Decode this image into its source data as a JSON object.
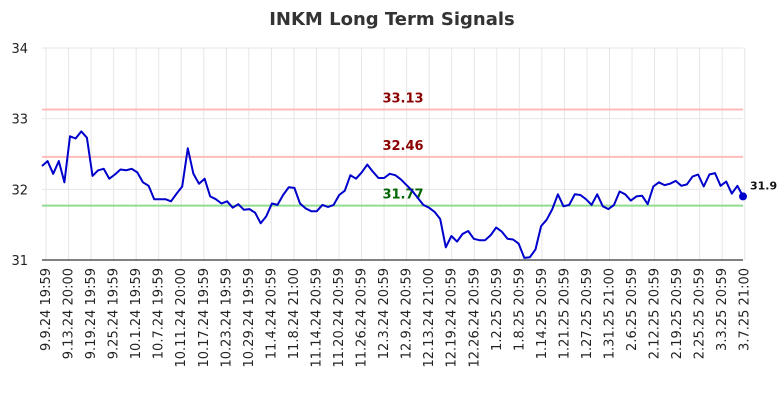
{
  "chart_data": {
    "type": "line",
    "title": "INKM Long Term Signals",
    "xlabel": "",
    "ylabel": "",
    "ylim": [
      31,
      34
    ],
    "yticks": [
      "31",
      "32",
      "33",
      "34"
    ],
    "grid": true,
    "xticks": [
      "9.9.24 19:59",
      "9.13.24 20:00",
      "9.19.24 19:59",
      "9.25.24 19:59",
      "10.1.24 19:59",
      "10.7.24 19:59",
      "10.11.24 20:00",
      "10.17.24 19:59",
      "10.23.24 19:59",
      "10.29.24 19:59",
      "11.4.24 20:59",
      "11.8.24 21:00",
      "11.14.24 20:59",
      "11.20.24 20:59",
      "11.26.24 20:59",
      "12.3.24 20:59",
      "12.9.24 20:59",
      "12.13.24 21:00",
      "12.19.24 20:59",
      "12.26.24 20:59",
      "1.2.25 20:59",
      "1.8.25 20:59",
      "1.14.25 20:59",
      "1.21.25 20:59",
      "1.27.25 20:59",
      "1.31.25 21:00",
      "2.6.25 20:59",
      "2.12.25 20:59",
      "2.19.25 20:59",
      "2.25.25 20:59",
      "3.3.25 20:59",
      "3.7.25 21:00"
    ],
    "reference_lines": [
      {
        "value": 33.13,
        "label": "33.13",
        "color": "#ffbbbb",
        "label_color": "#8b0000"
      },
      {
        "value": 32.46,
        "label": "32.46",
        "color": "#ffbbbb",
        "label_color": "#8b0000"
      },
      {
        "value": 31.77,
        "label": "31.77",
        "color": "#90dd90",
        "label_color": "#006400"
      }
    ],
    "last_label": "31.9",
    "series": [
      {
        "color": "#0000cc",
        "values": [
          32.33,
          32.4,
          32.22,
          32.4,
          32.1,
          32.75,
          32.72,
          32.82,
          32.73,
          32.19,
          32.27,
          32.29,
          32.15,
          32.21,
          32.28,
          32.27,
          32.29,
          32.24,
          32.1,
          32.05,
          31.86,
          31.86,
          31.86,
          31.83,
          31.94,
          32.04,
          32.58,
          32.22,
          32.08,
          32.15,
          31.9,
          31.86,
          31.8,
          31.83,
          31.74,
          31.79,
          31.71,
          31.72,
          31.67,
          31.52,
          31.62,
          31.8,
          31.78,
          31.92,
          32.03,
          32.02,
          31.8,
          31.73,
          31.69,
          31.69,
          31.78,
          31.75,
          31.78,
          31.92,
          31.98,
          32.2,
          32.15,
          32.24,
          32.35,
          32.25,
          32.16,
          32.16,
          32.22,
          32.2,
          32.14,
          32.06,
          31.98,
          31.88,
          31.78,
          31.74,
          31.68,
          31.58,
          31.18,
          31.34,
          31.26,
          31.37,
          31.41,
          31.3,
          31.28,
          31.28,
          31.35,
          31.46,
          31.4,
          31.3,
          31.29,
          31.23,
          31.03,
          31.04,
          31.15,
          31.48,
          31.57,
          31.72,
          31.93,
          31.76,
          31.78,
          31.93,
          31.92,
          31.86,
          31.78,
          31.93,
          31.76,
          31.72,
          31.78,
          31.97,
          31.93,
          31.84,
          31.9,
          31.91,
          31.79,
          32.04,
          32.1,
          32.06,
          32.08,
          32.12,
          32.05,
          32.07,
          32.18,
          32.21,
          32.04,
          32.21,
          32.23,
          32.05,
          32.11,
          31.94,
          32.05,
          31.9
        ]
      }
    ]
  }
}
